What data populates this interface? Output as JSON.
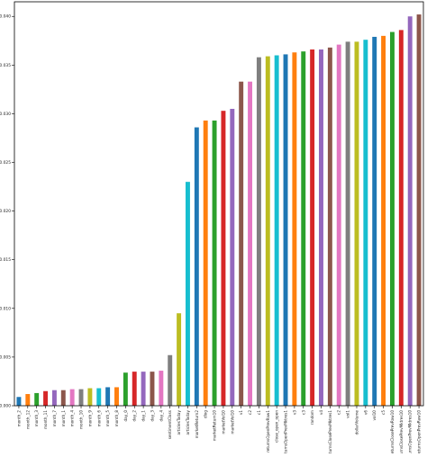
{
  "chart_data": {
    "type": "bar",
    "title": "",
    "xlabel": "",
    "ylabel": "",
    "ylim": [
      0,
      0.0415
    ],
    "y_ticks": [
      "0.000",
      "0.005",
      "0.010",
      "0.015",
      "0.020",
      "0.025",
      "0.030",
      "0.035",
      "0.040"
    ],
    "y_tick_values": [
      0,
      0.005,
      0.01,
      0.015,
      0.02,
      0.025,
      0.03,
      0.035,
      0.04
    ],
    "grid": false,
    "legend": "none",
    "palette": [
      "#1f77b4",
      "#ff7f0e",
      "#2ca02c",
      "#d62728",
      "#9467bd",
      "#8c564b",
      "#e377c2",
      "#7f7f7f",
      "#bcbd22",
      "#17becf"
    ],
    "categories": [
      "month_2",
      "month_12",
      "month_3",
      "month_11",
      "month_7",
      "month_1",
      "month_4",
      "month_10",
      "month_9",
      "month_6",
      "month_5",
      "month_8",
      "day_0",
      "day_2",
      "day_1",
      "day_3",
      "day_4",
      "sentimentClass",
      "articlesToday",
      "articlesToday",
      "marketReturn2",
      "dlog",
      "marketReturn10",
      "marketVol10",
      "marketVol10",
      "v1",
      "c2",
      "c1",
      "returnsOpenPrevRaw1",
      "close_open_open",
      "returnsOpenPrevMktres1",
      "v3",
      "c3",
      "random",
      "v4",
      "returnsClosePrevMktres1",
      "c2",
      "vol1",
      "dollarVolume",
      "v6",
      "vol10",
      "c5",
      "returnsClosePrevRaw10",
      "returnsClosePrevMktres10",
      "returnsOpenPrevMktres10",
      "returnsOpenPrevRaw10"
    ],
    "values": [
      0.0009,
      0.0012,
      0.0013,
      0.0015,
      0.0016,
      0.0016,
      0.0017,
      0.0017,
      0.0018,
      0.0018,
      0.0019,
      0.0019,
      0.0034,
      0.0035,
      0.0035,
      0.0035,
      0.0036,
      0.0052,
      0.0095,
      0.023,
      0.0286,
      0.0293,
      0.0293,
      0.0303,
      0.0305,
      0.0333,
      0.0333,
      0.0358,
      0.0359,
      0.036,
      0.0361,
      0.0363,
      0.0364,
      0.0366,
      0.0366,
      0.0368,
      0.0371,
      0.0374,
      0.0374,
      0.0376,
      0.0379,
      0.038,
      0.0384,
      0.0386,
      0.04,
      0.0402
    ]
  }
}
